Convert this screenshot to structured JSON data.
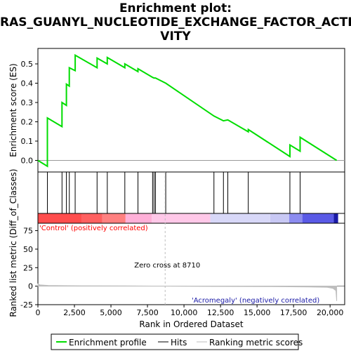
{
  "title_lines": [
    "Enrichment plot:",
    "RAS_GUANYL_NUCLEOTIDE_EXCHANGE_FACTOR_ACTI",
    "VITY"
  ],
  "colors": {
    "profile": "#00dd00",
    "hits": "#000000",
    "metric": "#bebebe",
    "control_label": "#ff0000",
    "negative_label": "#1a1aa6",
    "zero_line": "#bebebe"
  },
  "chart_data": {
    "type": "line",
    "title": "Enrichment plot: RAS_GUANYL_NUCLEOTIDE_EXCHANGE_FACTOR_ACTIVITY",
    "xlabel": "Rank in Ordered Dataset",
    "xlim": [
      0,
      21000
    ],
    "x_ticks": [
      0,
      2500,
      5000,
      7500,
      10000,
      12500,
      15000,
      17500,
      20000
    ],
    "x_tick_labels": [
      "0",
      "2,500",
      "5,000",
      "7,500",
      "10,000",
      "12,500",
      "15,000",
      "17,500",
      "20,000"
    ],
    "top_panel": {
      "ylabel": "Enrichment score (ES)",
      "ylim": [
        -0.06,
        0.58
      ],
      "y_ticks": [
        0.0,
        0.1,
        0.2,
        0.3,
        0.4,
        0.5
      ],
      "y_tick_labels": [
        "0.0",
        "0.1",
        "0.2",
        "0.3",
        "0.4",
        "0.5"
      ],
      "series": [
        {
          "name": "Enrichment profile",
          "points": [
            [
              0,
              0.0
            ],
            [
              650,
              -0.03
            ],
            [
              650,
              0.22
            ],
            [
              1650,
              0.175
            ],
            [
              1650,
              0.3
            ],
            [
              1950,
              0.285
            ],
            [
              1950,
              0.395
            ],
            [
              2150,
              0.385
            ],
            [
              2150,
              0.48
            ],
            [
              2550,
              0.465
            ],
            [
              2550,
              0.545
            ],
            [
              4050,
              0.48
            ],
            [
              4050,
              0.53
            ],
            [
              4750,
              0.5
            ],
            [
              4750,
              0.533
            ],
            [
              5950,
              0.48
            ],
            [
              5950,
              0.5
            ],
            [
              6850,
              0.46
            ],
            [
              6850,
              0.475
            ],
            [
              7850,
              0.43
            ],
            [
              7950,
              0.427
            ],
            [
              8050,
              0.427
            ],
            [
              8750,
              0.4
            ],
            [
              12050,
              0.23
            ],
            [
              12700,
              0.205
            ],
            [
              13000,
              0.21
            ],
            [
              14400,
              0.148
            ],
            [
              14400,
              0.16
            ],
            [
              17250,
              0.02
            ],
            [
              17250,
              0.08
            ],
            [
              17950,
              0.048
            ],
            [
              17950,
              0.12
            ],
            [
              20450,
              0.0
            ]
          ]
        }
      ]
    },
    "hits": [
      650,
      1650,
      1950,
      2150,
      2550,
      4050,
      4750,
      5950,
      6850,
      7850,
      7950,
      8050,
      8750,
      12050,
      12700,
      13000,
      14400,
      17250,
      17950
    ],
    "color_bar": {
      "segments": [
        {
          "from": 0,
          "to": 3000,
          "color": "#ff4d4d"
        },
        {
          "from": 3000,
          "to": 4400,
          "color": "#ff6060"
        },
        {
          "from": 4400,
          "to": 6000,
          "color": "#ff8080"
        },
        {
          "from": 6000,
          "to": 7800,
          "color": "#ffb0d8"
        },
        {
          "from": 7800,
          "to": 11800,
          "color": "#ffc8e8"
        },
        {
          "from": 11800,
          "to": 15900,
          "color": "#d8d8f8"
        },
        {
          "from": 15900,
          "to": 17200,
          "color": "#c8c8f4"
        },
        {
          "from": 17200,
          "to": 18100,
          "color": "#8c8cf0"
        },
        {
          "from": 18100,
          "to": 20250,
          "color": "#5a5ae6"
        },
        {
          "from": 20250,
          "to": 20550,
          "color": "#1a1aa6"
        }
      ]
    },
    "bottom_panel": {
      "ylabel": "Ranked list metric (Diff_of_Classes)",
      "ylim": [
        -25,
        85
      ],
      "y_ticks": [
        -25,
        0,
        25,
        50,
        75
      ],
      "y_tick_labels": [
        "-25",
        "0",
        "25",
        "50",
        "75"
      ],
      "metric_points": [
        [
          0,
          3.0
        ],
        [
          150,
          1.6
        ],
        [
          700,
          1.0
        ],
        [
          1700,
          0.7
        ],
        [
          3000,
          0.5
        ],
        [
          6000,
          0.3
        ],
        [
          8710,
          0.0
        ],
        [
          12000,
          -0.3
        ],
        [
          16000,
          -0.6
        ],
        [
          18500,
          -1.0
        ],
        [
          19800,
          -1.5
        ],
        [
          20200,
          -3.0
        ],
        [
          20400,
          -6.0
        ],
        [
          20450,
          -20.0
        ]
      ],
      "zero_cross_rank": 8710
    },
    "annotations": {
      "positive_label": "'Control' (positively correlated)",
      "negative_label": "'Acromegaly' (negatively correlated)",
      "zero_cross": "Zero cross at 8710"
    }
  },
  "legend": {
    "items": [
      {
        "label": "Enrichment profile",
        "color": "#00dd00"
      },
      {
        "label": "Hits",
        "color": "#000000"
      },
      {
        "label": "Ranking metric scores",
        "color": "#bebebe"
      }
    ]
  }
}
